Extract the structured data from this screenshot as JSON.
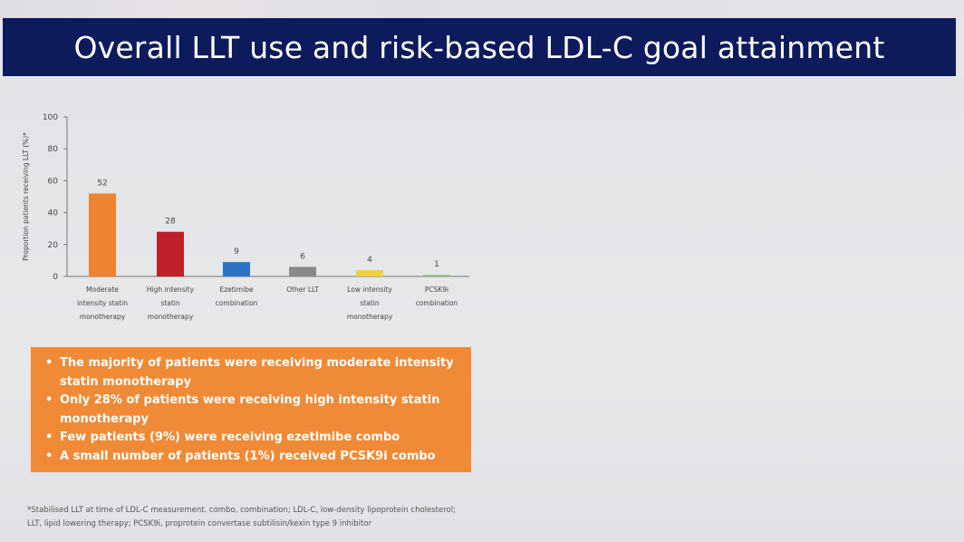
{
  "slide": {
    "title": "Overall LLT use and risk-based LDL-C goal attainment",
    "footnote_line1": "*Stabilised LLT at time of LDL-C measurement. combo, combination; LDL-C, low-density lipoprotein cholesterol;",
    "footnote_line2": "LLT, lipid lowering therapy; PCSK9i, proprotein convertase subtilisin/kexin type 9 inhibitor"
  },
  "callout": {
    "bullets": [
      [
        "The majority of patients were receiving moderate intensity",
        "statin monotherapy"
      ],
      [
        "Only 28% of patients were receiving high intensity statin",
        "monotherapy"
      ],
      [
        "Few patients (9%) were receiving ezetimibe combo"
      ],
      [
        "A small number of patients (1%) received PCSK9i combo"
      ]
    ],
    "background_color": "#f08a36"
  },
  "colors": {
    "title_bar": "#0d1b5c",
    "title_text": "#ffffff"
  },
  "chart_data": {
    "type": "bar",
    "categories": [
      [
        "Moderate",
        "intensity statin",
        "monotherapy"
      ],
      [
        "High intensity",
        "statin",
        "monotherapy"
      ],
      [
        "Ezetimibe",
        "combination"
      ],
      [
        "Other LLT"
      ],
      [
        "Low intensity",
        "statin",
        "monotherapy"
      ],
      [
        "PCSK9i",
        "combination"
      ]
    ],
    "values": [
      52,
      28,
      9,
      6,
      4,
      1
    ],
    "data_labels": [
      "52",
      "28",
      "9",
      "6",
      "4",
      "1"
    ],
    "bar_colors": [
      "#ee8330",
      "#c0202a",
      "#2a73c4",
      "#8a8a8a",
      "#f2d03c",
      "#8fc57a"
    ],
    "ylabel": "Proportion patients receiving  LLT (%)*",
    "yticks": [
      0,
      20,
      40,
      60,
      80,
      100
    ],
    "ylim": [
      0,
      100
    ],
    "grid": false
  }
}
